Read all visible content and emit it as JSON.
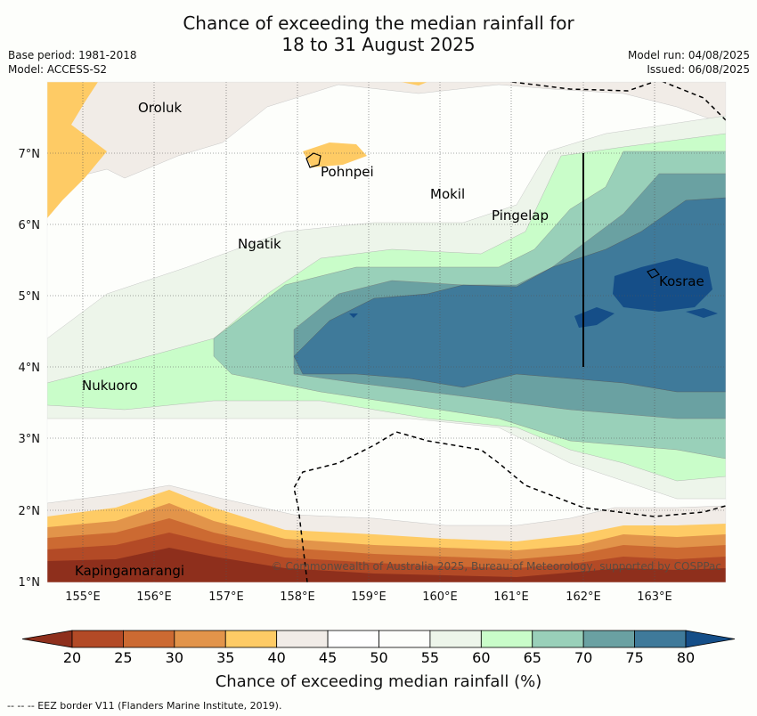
{
  "header": {
    "title_line1": "Chance of exceeding the median rainfall for",
    "title_line2": "18 to 31 August 2025",
    "base_period": "Base period: 1981-2018",
    "model": "Model: ACCESS-S2",
    "model_run": "Model run: 04/08/2025",
    "issued": "Issued: 06/08/2025"
  },
  "map": {
    "lon_ticks": [
      "155°E",
      "156°E",
      "157°E",
      "158°E",
      "159°E",
      "160°E",
      "161°E",
      "162°E",
      "163°E"
    ],
    "lat_ticks": [
      "7°N",
      "6°N",
      "5°N",
      "4°N",
      "3°N",
      "2°N",
      "1°N"
    ],
    "places": [
      {
        "name": "Oroluk",
        "lon": 155.7,
        "lat": 7.6
      },
      {
        "name": "Pohnpei",
        "lon": 158.2,
        "lat": 6.85
      },
      {
        "name": "Mokil",
        "lon": 159.85,
        "lat": 6.65
      },
      {
        "name": "Pingelap",
        "lon": 160.7,
        "lat": 6.2
      },
      {
        "name": "Ngatik",
        "lon": 157.1,
        "lat": 5.8
      },
      {
        "name": "Kosrae",
        "lon": 163.0,
        "lat": 5.3
      },
      {
        "name": "Nukuoro",
        "lon": 154.8,
        "lat": 3.85
      },
      {
        "name": "Kapingamarangi",
        "lon": 154.8,
        "lat": 1.25
      }
    ],
    "copyright": "© Commonwealth of Australia 2025, Bureau of Meteorology, supported by COSPPac"
  },
  "colorbar": {
    "ticks": [
      "20",
      "25",
      "30",
      "35",
      "40",
      "45",
      "50",
      "55",
      "60",
      "65",
      "70",
      "75",
      "80"
    ],
    "colors": [
      "#8e2f1c",
      "#b34a26",
      "#cc6a32",
      "#e2944a",
      "#fecb65",
      "#f1ece7",
      "#ffffff",
      "#fdfefb",
      "#edf5ea",
      "#c9fdc9",
      "#99d0b9",
      "#6aa1a2",
      "#3f7a9a",
      "#154e88"
    ],
    "label": "Chance of exceeding median rainfall (%)"
  },
  "footnote": "--  --  -- EEZ border V11 (Flanders Marine Institute, 2019)."
}
